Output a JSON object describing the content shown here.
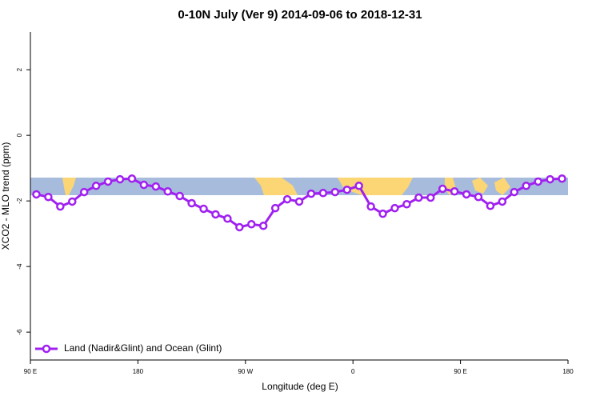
{
  "chart_data": {
    "type": "line",
    "title": "0-10N July (Ver 9)   2014-09-06 to 2018-12-31",
    "xlabel": "Longitude (deg E)",
    "ylabel": "XCO2 - MLO trend (ppm)",
    "x": [
      95,
      105,
      115,
      125,
      135,
      145,
      155,
      165,
      175,
      185,
      195,
      205,
      215,
      225,
      235,
      245,
      255,
      265,
      275,
      285,
      295,
      305,
      315,
      325,
      335,
      345,
      355,
      365,
      375,
      385,
      395,
      405,
      415,
      425,
      435,
      445,
      455,
      465,
      475,
      485,
      495,
      505,
      515,
      525,
      535
    ],
    "series": [
      {
        "name": "Land (Nadir&Glint) and Ocean (Glint)",
        "color": "#a020f0",
        "values": [
          -1.8,
          -1.88,
          -2.17,
          -2.02,
          -1.73,
          -1.54,
          -1.41,
          -1.34,
          -1.32,
          -1.51,
          -1.56,
          -1.71,
          -1.85,
          -2.07,
          -2.24,
          -2.41,
          -2.54,
          -2.8,
          -2.71,
          -2.76,
          -2.22,
          -1.95,
          -2.02,
          -1.78,
          -1.76,
          -1.73,
          -1.66,
          -1.54,
          -2.17,
          -2.39,
          -2.22,
          -2.1,
          -1.9,
          -1.9,
          -1.63,
          -1.71,
          -1.8,
          -1.88,
          -2.15,
          -2.02,
          -1.73,
          -1.54,
          -1.41,
          -1.34,
          -1.32
        ]
      }
    ],
    "xlim": [
      90,
      540
    ],
    "xticks": [
      {
        "value": 90,
        "label": "90 E"
      },
      180,
      {
        "value": 270,
        "label": "90 W"
      },
      {
        "value": 360,
        "label": "0"
      },
      {
        "value": 450,
        "label": "90 E"
      },
      {
        "value": 540,
        "label": "180"
      }
    ],
    "ylim": [
      -6.85,
      3.15
    ],
    "yticks": [
      2,
      0,
      -2,
      -4,
      -6
    ],
    "legend": "bottom-left"
  }
}
